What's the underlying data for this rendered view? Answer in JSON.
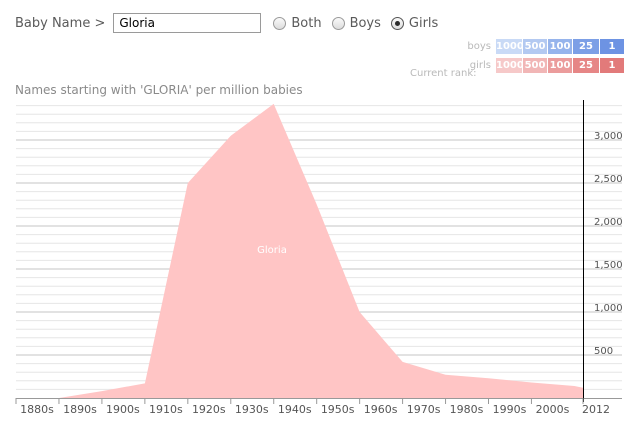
{
  "controls": {
    "label": "Baby Name >",
    "input_value": "Gloria",
    "radios": [
      {
        "label": "Both",
        "selected": false
      },
      {
        "label": "Boys",
        "selected": false
      },
      {
        "label": "Girls",
        "selected": true
      }
    ]
  },
  "legend": {
    "boys_label": "boys",
    "girls_label": "girls",
    "rank_label": "Current rank:",
    "cells": [
      "1000",
      "500",
      "100",
      "25",
      "1"
    ],
    "boys_colors": [
      "#c9daf6",
      "#b3c9f1",
      "#96b4ec",
      "#7c9fe6",
      "#6d93e3"
    ],
    "girls_colors": [
      "#f6c9c9",
      "#f1b6b6",
      "#eb9c9c",
      "#e68686",
      "#e27a7a"
    ]
  },
  "subtitle": "Names starting with 'GLORIA' per million babies",
  "colors": {
    "area": "#ffc5c5",
    "gridline": "#d6d6d6",
    "axis": "#000000",
    "tick_text": "#555555"
  },
  "chart_data": {
    "type": "area",
    "title": "Names starting with 'GLORIA' per million babies",
    "xlabel": "",
    "ylabel": "",
    "x": [
      1880,
      1890,
      1900,
      1910,
      1920,
      1930,
      1940,
      1950,
      1960,
      1970,
      1980,
      1990,
      2000,
      2010,
      2012
    ],
    "xticks": [
      "1880s",
      "1890s",
      "1900s",
      "1910s",
      "1920s",
      "1930s",
      "1940s",
      "1950s",
      "1960s",
      "1970s",
      "1980s",
      "1990s",
      "2000s",
      "2012"
    ],
    "series": [
      {
        "name": "Gloria",
        "values": [
          0,
          0,
          80,
          170,
          2500,
          3050,
          3420,
          2250,
          1000,
          420,
          270,
          230,
          180,
          140,
          120
        ]
      }
    ],
    "yticks": [
      500,
      1000,
      1500,
      2000,
      2500,
      3000
    ],
    "ytick_labels": [
      "500",
      "1,000",
      "1,500",
      "2,000",
      "2,500",
      "3,000"
    ],
    "ylim": [
      0,
      3500
    ],
    "xlim": [
      1880,
      2012
    ],
    "grid": true
  }
}
